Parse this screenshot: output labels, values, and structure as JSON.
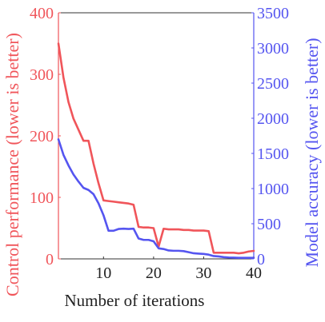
{
  "chart_data": {
    "type": "line",
    "xlabel": "Number of iterations",
    "xlim": [
      1,
      40
    ],
    "xticks": [
      10,
      20,
      30,
      40
    ],
    "grid": false,
    "y_left": {
      "label": "Control performance (lower is better)",
      "lim": [
        0,
        400
      ],
      "ticks": [
        0,
        100,
        200,
        300,
        400
      ],
      "color": "#f0555a"
    },
    "y_right": {
      "label": "Model accuracy (lower is better)",
      "lim": [
        0,
        3500
      ],
      "ticks": [
        0,
        500,
        1000,
        1500,
        2000,
        2500,
        3000,
        3500
      ],
      "color": "#5555f0"
    },
    "series": [
      {
        "axis": "left",
        "color": "#f0555a",
        "x": [
          1,
          2,
          3,
          4,
          5,
          6,
          7,
          8,
          9,
          10,
          11,
          12,
          13,
          14,
          15,
          16,
          17,
          18,
          19,
          20,
          21,
          22,
          23,
          24,
          25,
          26,
          27,
          28,
          29,
          30,
          31,
          32,
          33,
          34,
          35,
          36,
          37,
          38,
          39,
          40
        ],
        "y": [
          350,
          295,
          255,
          228,
          210,
          192,
          192,
          155,
          123,
          95,
          94,
          93,
          92,
          91,
          90,
          88,
          52,
          51,
          51,
          50,
          20,
          49,
          48,
          48,
          48,
          47,
          47,
          46,
          46,
          46,
          45,
          10,
          10,
          10,
          10,
          10,
          9,
          10,
          12,
          13
        ]
      },
      {
        "axis": "right",
        "color": "#5555f0",
        "x": [
          1,
          2,
          3,
          4,
          5,
          6,
          7,
          8,
          9,
          10,
          11,
          12,
          13,
          14,
          15,
          16,
          17,
          18,
          19,
          20,
          21,
          22,
          23,
          24,
          25,
          26,
          27,
          28,
          29,
          30,
          31,
          32,
          33,
          34,
          35,
          36,
          37,
          38,
          39,
          40
        ],
        "y": [
          1700,
          1480,
          1330,
          1200,
          1100,
          1010,
          980,
          920,
          790,
          620,
          400,
          400,
          425,
          430,
          425,
          430,
          290,
          270,
          270,
          250,
          150,
          140,
          120,
          115,
          115,
          110,
          95,
          80,
          75,
          70,
          60,
          40,
          35,
          25,
          20,
          18,
          15,
          15,
          15,
          15
        ]
      }
    ]
  }
}
